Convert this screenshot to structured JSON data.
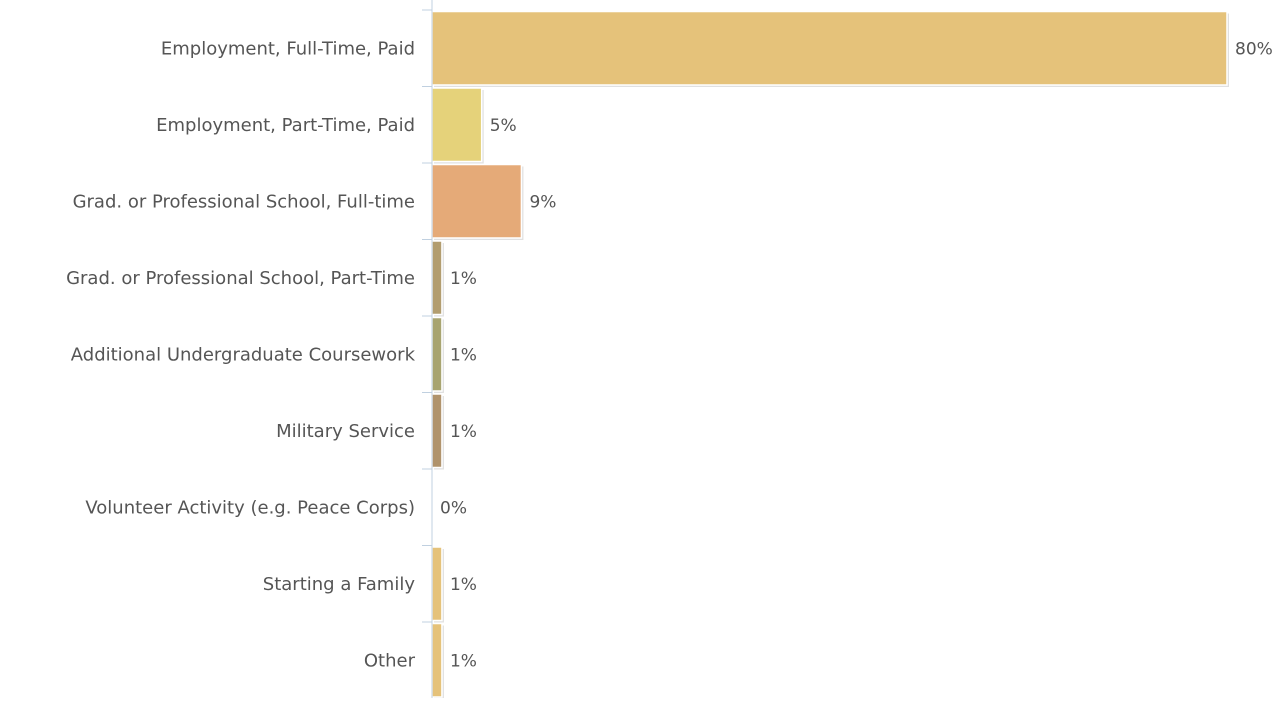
{
  "chart_data": {
    "type": "bar",
    "orientation": "horizontal",
    "categories": [
      "Employment, Full-Time, Paid",
      "Employment, Part-Time, Paid",
      "Grad. or Professional School, Full-time",
      "Grad. or Professional School, Part-Time",
      "Additional Undergraduate Coursework",
      "Military Service",
      "Volunteer Activity (e.g. Peace Corps)",
      "Starting a Family",
      "Other"
    ],
    "values": [
      80,
      5,
      9,
      1,
      1,
      1,
      0,
      1,
      1
    ],
    "value_labels": [
      "80%",
      "5%",
      "9%",
      "1%",
      "1%",
      "1%",
      "0%",
      "1%",
      "1%"
    ],
    "unit": "%",
    "xlim": [
      0,
      80
    ],
    "grid": false,
    "legend": "none",
    "colors": [
      "#e5c27a",
      "#e5d27a",
      "#e5aa78",
      "#b29d6f",
      "#a8a470",
      "#b0936c",
      "#e5c27a",
      "#e5c27a",
      "#e5c27a"
    ],
    "label_color": "#555555",
    "axis_color": "#c0d0e0"
  }
}
